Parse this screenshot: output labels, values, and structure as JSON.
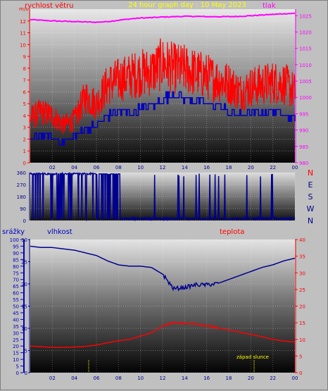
{
  "chart_data": [
    {
      "type": "line",
      "title": "24 hour graph day : 10 May 2023",
      "left_label": "rychlost větru",
      "right_label": "tlak",
      "x_ticks": [
        "02",
        "04",
        "06",
        "08",
        "10",
        "12",
        "14",
        "16",
        "18",
        "20",
        "22",
        "00"
      ],
      "y_left_ticks": [
        "0",
        "1",
        "2",
        "3",
        "4",
        "5",
        "6",
        "7",
        "8",
        "9",
        "10",
        "11",
        "12"
      ],
      "y_left_top": "m/s",
      "y_right_ticks": [
        "980",
        "985",
        "990",
        "995",
        "1000",
        "1005",
        "1010",
        "1015",
        "1020",
        "1025"
      ],
      "ylim_left": [
        0,
        13
      ],
      "ylim_right": [
        980,
        1027
      ],
      "series": [
        {
          "axis": "right",
          "color": "#ff00ff",
          "hours": [
            0,
            1,
            2,
            3,
            4,
            5,
            6,
            7,
            8,
            9,
            10,
            11,
            12,
            13,
            14,
            15,
            16,
            17,
            18,
            19,
            20,
            21,
            22,
            23,
            24
          ],
          "values": [
            1023.8,
            1023.6,
            1023.4,
            1023.3,
            1023.2,
            1023.1,
            1023.0,
            1023.2,
            1023.6,
            1024.0,
            1024.3,
            1024.4,
            1024.6,
            1024.7,
            1024.8,
            1024.8,
            1024.7,
            1024.7,
            1024.7,
            1024.8,
            1025.0,
            1025.2,
            1025.4,
            1025.6,
            1025.7
          ]
        },
        {
          "axis": "left",
          "color": "#ff0000",
          "hours": [
            0,
            1,
            2,
            3,
            4,
            5,
            6,
            7,
            8,
            9,
            10,
            11,
            12,
            13,
            14,
            15,
            16,
            17,
            18,
            19,
            20,
            21,
            22,
            23,
            24
          ],
          "values": [
            3.8,
            4.3,
            4.0,
            3.2,
            3.6,
            5.6,
            5.0,
            6.6,
            7.0,
            7.3,
            7.6,
            7.7,
            8.4,
            8.0,
            7.9,
            7.6,
            7.3,
            7.0,
            6.7,
            6.0,
            6.4,
            6.6,
            6.8,
            6.7,
            6.0
          ]
        },
        {
          "axis": "left",
          "color": "#0000c0",
          "hours": [
            0,
            1,
            2,
            3,
            4,
            5,
            6,
            7,
            8,
            9,
            10,
            11,
            12,
            13,
            14,
            15,
            16,
            17,
            18,
            19,
            20,
            21,
            22,
            23,
            24
          ],
          "values": [
            1.8,
            2.5,
            2.0,
            1.8,
            2.2,
            3.0,
            3.0,
            4.0,
            4.4,
            4.2,
            4.6,
            4.8,
            5.4,
            5.8,
            5.5,
            5.2,
            4.9,
            4.9,
            4.3,
            4.0,
            4.2,
            4.2,
            4.4,
            4.2,
            3.5
          ]
        }
      ]
    },
    {
      "type": "line",
      "title": "",
      "y_left_ticks": [
        "0",
        "90",
        "180",
        "270",
        "360"
      ],
      "right_labels": [
        "N",
        "W",
        "S",
        "E",
        "N"
      ],
      "ylim": [
        0,
        360
      ],
      "series": [
        {
          "color": "#000090",
          "description_values_baseline_deg": [
            20,
            350
          ]
        }
      ]
    },
    {
      "type": "line",
      "title": "",
      "label_far_left": "srážky",
      "label_left": "vlhkost",
      "label_right": "teplota",
      "x_ticks": [
        "02",
        "04",
        "06",
        "08",
        "10",
        "12",
        "14",
        "16",
        "18",
        "20",
        "22",
        "00"
      ],
      "y_far_left_ticks": [
        "0",
        "5",
        "10",
        "15",
        "20",
        "25",
        "30",
        "35",
        "40",
        "45",
        "50",
        "55",
        "60",
        "65",
        "70",
        "75",
        "80",
        "85",
        "90",
        "95",
        "100"
      ],
      "y_left_ticks": [
        "0",
        "5",
        "10",
        "15",
        "20",
        "25",
        "30"
      ],
      "y_right_ticks": [
        "0",
        "5",
        "10",
        "15",
        "20",
        "25",
        "30",
        "35",
        "40"
      ],
      "ylim_humidity": [
        0,
        100
      ],
      "ylim_temperature": [
        0,
        40
      ],
      "annotation": "západ slunce",
      "markers_hours": [
        5.3,
        20.3
      ],
      "series": [
        {
          "name": "vlhkost",
          "axis": "humidity",
          "color": "#000090",
          "hours": [
            0,
            1,
            2,
            3,
            4,
            5,
            6,
            7,
            8,
            9,
            10,
            11,
            12,
            13,
            14,
            15,
            16,
            17,
            18,
            19,
            20,
            21,
            22,
            23,
            24
          ],
          "values": [
            95,
            94,
            94,
            93,
            92,
            90,
            88,
            84,
            81,
            80,
            80,
            79,
            74,
            63,
            64,
            66,
            66,
            67,
            70,
            73,
            76,
            79,
            81,
            84,
            86
          ]
        },
        {
          "name": "teplota",
          "axis": "temperature",
          "color": "#ff0000",
          "hours": [
            0,
            1,
            2,
            3,
            4,
            5,
            6,
            7,
            8,
            9,
            10,
            11,
            12,
            13,
            14,
            15,
            16,
            17,
            18,
            19,
            20,
            21,
            22,
            23,
            24
          ],
          "values": [
            8.0,
            7.8,
            7.6,
            7.6,
            7.7,
            7.9,
            8.3,
            9.0,
            9.6,
            10.0,
            11.0,
            12.0,
            14.0,
            15.0,
            14.8,
            14.6,
            14.0,
            13.5,
            12.8,
            12.2,
            11.5,
            10.8,
            10.0,
            9.5,
            9.2
          ]
        }
      ]
    }
  ]
}
